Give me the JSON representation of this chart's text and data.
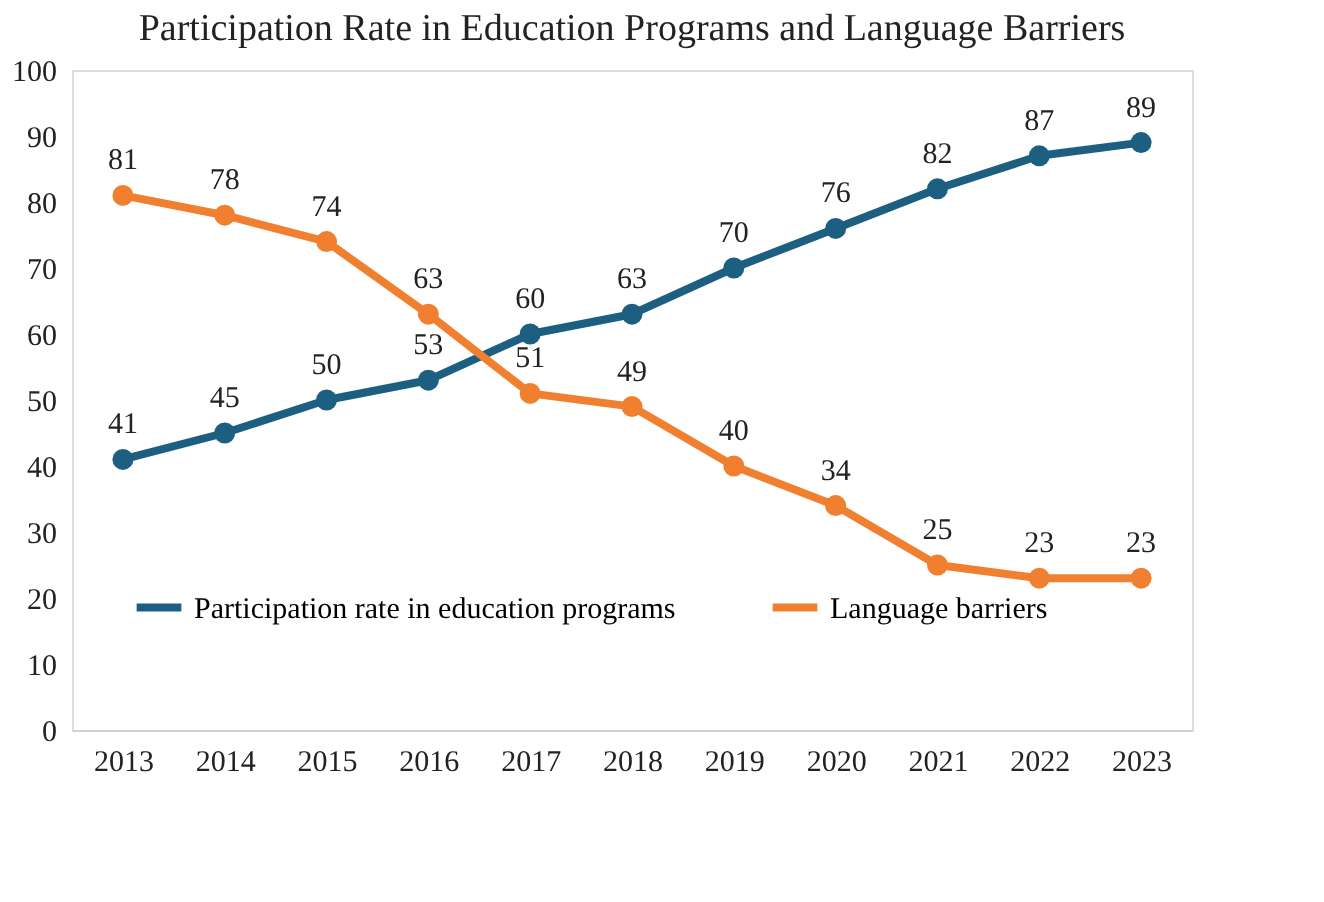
{
  "chart_data": {
    "type": "line",
    "title": "Participation Rate in Education Programs and Language Barriers",
    "categories": [
      "2013",
      "2014",
      "2015",
      "2016",
      "2017",
      "2018",
      "2019",
      "2020",
      "2021",
      "2022",
      "2023"
    ],
    "series": [
      {
        "name": "Participation rate in education programs",
        "color": "#1d5f80",
        "values": [
          41,
          45,
          50,
          53,
          60,
          63,
          70,
          76,
          82,
          87,
          89
        ]
      },
      {
        "name": "Language barriers",
        "color": "#f0802f",
        "values": [
          81,
          78,
          74,
          63,
          51,
          49,
          40,
          34,
          25,
          23,
          23
        ]
      }
    ],
    "ylim": [
      0,
      100
    ],
    "yticks": [
      0,
      10,
      20,
      30,
      40,
      50,
      60,
      70,
      80,
      90,
      100
    ],
    "grid": false,
    "legend": "bottom",
    "marker": "circle",
    "line_style": "solid",
    "data_labels": true
  }
}
